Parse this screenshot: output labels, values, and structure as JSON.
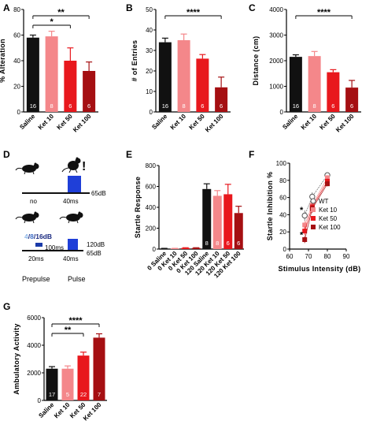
{
  "colors": {
    "saline": "#111111",
    "ket10": "#f4878a",
    "ket50": "#e8181d",
    "ket100": "#a50f12",
    "pulse_blue": "#1f3fd8",
    "prepulse_blue": "#1a3aa8",
    "label_4": "#8fb8e8",
    "label_8": "#3f6fc8",
    "label_16": "#1a2a80"
  },
  "panels": {
    "A": "A",
    "B": "B",
    "C": "C",
    "D": "D",
    "E": "E",
    "F": "F",
    "G": "G"
  },
  "chart_data": [
    {
      "panel": "A",
      "type": "bar",
      "ylabel": "% Alteration",
      "ylim": [
        0,
        80
      ],
      "yticks": [
        "0",
        "20",
        "40",
        "60",
        "80"
      ],
      "categories": [
        "Saline",
        "Ket 10",
        "Ket 50",
        "Ket 100"
      ],
      "values": [
        58,
        59,
        40,
        32
      ],
      "errors": [
        2,
        4,
        10,
        7
      ],
      "n": [
        "16",
        "8",
        "6",
        "6"
      ],
      "significance": [
        {
          "from": 0,
          "to": 3,
          "label": "**"
        },
        {
          "from": 0,
          "to": 2,
          "label": "*"
        }
      ]
    },
    {
      "panel": "B",
      "type": "bar",
      "ylabel": "# of Entries",
      "ylim": [
        0,
        50
      ],
      "yticks": [
        "0",
        "10",
        "20",
        "30",
        "40",
        "50"
      ],
      "categories": [
        "Saline",
        "Ket 10",
        "Ket 50",
        "Ket 100"
      ],
      "values": [
        34,
        35,
        26,
        12
      ],
      "errors": [
        2,
        3,
        2,
        5
      ],
      "n": [
        "16",
        "8",
        "6",
        "6"
      ],
      "significance": [
        {
          "from": 0,
          "to": 3,
          "label": "****"
        }
      ]
    },
    {
      "panel": "C",
      "type": "bar",
      "ylabel": "Distance (cm)",
      "ylim": [
        0,
        4000
      ],
      "yticks": [
        "0",
        "1000",
        "2000",
        "3000",
        "4000"
      ],
      "categories": [
        "Saline",
        "Ket 10",
        "Ket 50",
        "Ket 100"
      ],
      "values": [
        2150,
        2180,
        1550,
        950
      ],
      "errors": [
        80,
        180,
        100,
        280
      ],
      "n": [
        "16",
        "8",
        "6",
        "6"
      ],
      "significance": [
        {
          "from": 0,
          "to": 3,
          "label": "****"
        }
      ]
    },
    {
      "panel": "E",
      "type": "bar",
      "ylabel": "Startle Response",
      "ylim": [
        0,
        800
      ],
      "yticks": [
        "0",
        "200",
        "400",
        "600",
        "800"
      ],
      "categories": [
        "0 Saline",
        "0 Ket 10",
        "0 Ket 50",
        "0 Ket 100",
        "120 Saline",
        "120 Ket 10",
        "120 Ket 50",
        "120 Ket 100"
      ],
      "values": [
        5,
        5,
        10,
        10,
        575,
        510,
        525,
        345
      ],
      "errors": [
        2,
        2,
        3,
        3,
        50,
        50,
        95,
        65
      ],
      "n": [
        "",
        "",
        "",
        "",
        "8",
        "8",
        "6",
        "6"
      ],
      "bar_colors": [
        "saline",
        "ket10",
        "ket50",
        "ket100",
        "saline",
        "ket10",
        "ket50",
        "ket100"
      ]
    },
    {
      "panel": "F",
      "type": "scatter",
      "ylabel": "Startle Inhibition %",
      "xlabel": "Stimulus Intensity (dB)",
      "xlim": [
        60,
        90
      ],
      "ylim": [
        0,
        100
      ],
      "xticks": [
        "60",
        "70",
        "80",
        "90"
      ],
      "yticks": [
        "0",
        "20",
        "40",
        "60",
        "80",
        "100"
      ],
      "x": [
        68,
        72,
        80
      ],
      "series": [
        {
          "name": "WT",
          "color": "white",
          "values": [
            39,
            61,
            86
          ],
          "errors": [
            6,
            5,
            2
          ]
        },
        {
          "name": "Ket 10",
          "color": "ket10",
          "values": [
            28,
            51,
            83
          ],
          "errors": [
            5,
            5,
            3
          ]
        },
        {
          "name": "Ket 50",
          "color": "ket50",
          "values": [
            21,
            49,
            79
          ],
          "errors": [
            5,
            4,
            3
          ]
        },
        {
          "name": "Ket 100",
          "color": "ket100",
          "values": [
            11,
            47,
            76
          ],
          "errors": [
            4,
            5,
            3
          ]
        }
      ],
      "annotations": [
        {
          "x": 68,
          "y": 46,
          "label": "*"
        },
        {
          "x": 68,
          "y": 17,
          "label": "*"
        }
      ]
    },
    {
      "panel": "G",
      "type": "bar",
      "ylabel": "Ambulatory Activity",
      "ylim": [
        0,
        6000
      ],
      "yticks": [
        "0",
        "2000",
        "4000",
        "6000"
      ],
      "categories": [
        "Saline",
        "Ket 10",
        "Ket 50",
        "Ket 100"
      ],
      "values": [
        2300,
        2300,
        3250,
        4550
      ],
      "errors": [
        150,
        200,
        250,
        280
      ],
      "n": [
        "17",
        "5",
        "22",
        "7"
      ],
      "significance": [
        {
          "from": 0,
          "to": 3,
          "label": "****"
        },
        {
          "from": 0,
          "to": 2,
          "label": "**"
        }
      ]
    }
  ],
  "diagram": {
    "exclaim": "!",
    "db65_top": "65dB",
    "no": "no",
    "ms40_top": "40ms",
    "prepulse_4": "4",
    "prepulse_8": "8",
    "prepulse_16": "16dB",
    "sep": "/",
    "ms100": "100ms",
    "db120": "120dB",
    "db65_bottom": "65dB",
    "ms20": "20ms",
    "ms40_bottom": "40ms",
    "prepulse_label": "Prepulse",
    "pulse_label": "Pulse"
  }
}
